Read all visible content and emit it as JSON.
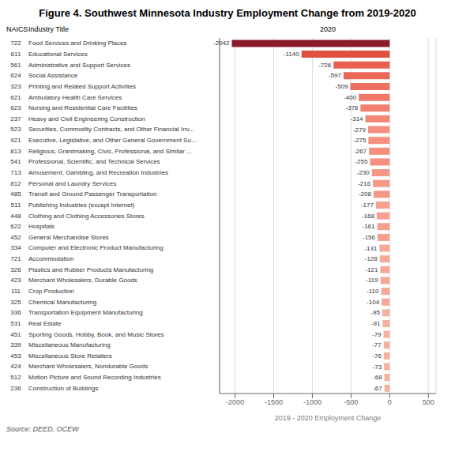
{
  "chart_data": {
    "type": "bar",
    "orientation": "horizontal",
    "title": "Figure 4. Southwest Minnesota Industry Employment Change from 2019-2020",
    "xlabel": "2019 - 2020 Employment Change",
    "column_header": "2020",
    "naics_header": "NAICS",
    "industry_header": "Industry Title",
    "source": "Source: DEED, OCEW",
    "naics": [
      "722",
      "611",
      "561",
      "624",
      "323",
      "621",
      "623",
      "237",
      "523",
      "921",
      "813",
      "541",
      "713",
      "812",
      "485",
      "511",
      "448",
      "622",
      "452",
      "334",
      "721",
      "326",
      "423",
      "111",
      "325",
      "336",
      "531",
      "451",
      "339",
      "453",
      "424",
      "512",
      "236"
    ],
    "categories": [
      "Food Services and Drinking Places",
      "Educational Services",
      "Administrative and Support Services",
      "Social Assistance",
      "Printing and Related Support Activities",
      "Ambulatory Health Care Services",
      "Nursing and Residential Care Facilities",
      "Heavy and Civil Engineering Construction",
      "Securities, Commodity Contracts, and Other Financial Inv...",
      "Executive, Legislative, and Other General Government Su...",
      "Religious, Grantmaking, Civic, Professional, and Similar ...",
      "Professional, Scientific, and Technical Services",
      "Amusement, Gambling, and Recreation Industries",
      "Personal and Laundry Services",
      "Transit and Ground Passenger Transportation",
      "Publishing Industries (except Internet)",
      "Clothing and Clothing Accessories Stores",
      "Hospitals",
      "General Merchandise Stores",
      "Computer and Electronic Product Manufacturing",
      "Accommodation",
      "Plastics and Rubber Products Manufacturing",
      "Merchant Wholesalers, Durable Goods",
      "Crop Production",
      "Chemical Manufacturing",
      "Transportation Equipment Manufacturing",
      "Real Estate",
      "Sporting Goods, Hobby, Book, and Music Stores",
      "Miscellaneous Manufacturing",
      "Miscellaneous Store Retailers",
      "Merchant Wholesalers, Nondurable Goods",
      "Motion Picture and Sound Recording Industries",
      "Construction of Buildings"
    ],
    "values": [
      -2042,
      -1140,
      -726,
      -597,
      -509,
      -400,
      -378,
      -314,
      -279,
      -275,
      -267,
      -255,
      -230,
      -216,
      -208,
      -177,
      -168,
      -161,
      -156,
      -131,
      -128,
      -121,
      -119,
      -110,
      -104,
      -95,
      -91,
      -79,
      -77,
      -76,
      -73,
      -68,
      -67
    ],
    "colors": [
      "#8B1A2A",
      "#E05040",
      "#E86050",
      "#EB6858",
      "#EE7060",
      "#F07868",
      "#F28070",
      "#F48878",
      "#F59080",
      "#F59080",
      "#F59080",
      "#F59080",
      "#F59888",
      "#F59888",
      "#F59888",
      "#F5A090",
      "#F5A090",
      "#F5A090",
      "#F5A090",
      "#F5A898",
      "#F5A898",
      "#F5A898",
      "#F5A898",
      "#F5A898",
      "#F5A898",
      "#F5B0A0",
      "#F5B0A0",
      "#F5B0A0",
      "#F5B0A0",
      "#F5B0A0",
      "#F5B0A0",
      "#F5B0A0",
      "#F5B0A0"
    ],
    "xlim": [
      -2200,
      600
    ],
    "xticks": [
      -2000,
      -1500,
      -1000,
      -500,
      0,
      500
    ],
    "grid": true,
    "data_labels": true
  }
}
